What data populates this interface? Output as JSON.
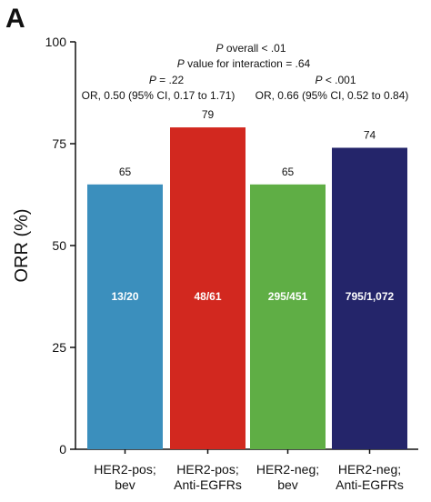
{
  "panel_letter": "A",
  "chart_data": {
    "type": "bar",
    "ylabel": "ORR (%)",
    "ylim": [
      0,
      100
    ],
    "yticks": [
      0,
      25,
      50,
      75,
      100
    ],
    "categories": [
      [
        "HER2-pos;",
        "bev"
      ],
      [
        "HER2-pos;",
        "Anti-EGFRs"
      ],
      [
        "HER2-neg;",
        "bev"
      ],
      [
        "HER2-neg;",
        "Anti-EGFRs"
      ]
    ],
    "values": [
      65,
      79,
      65,
      74
    ],
    "value_labels": [
      "65",
      "79",
      "65",
      "74"
    ],
    "bar_labels": [
      "13/20",
      "48/61",
      "295/451",
      "795/1,072"
    ],
    "colors": [
      "#3b8fbd",
      "#d2281f",
      "#5fae45",
      "#24256a"
    ],
    "annotations": {
      "overall": {
        "italic": "P",
        "text": " overall < .01"
      },
      "interaction": {
        "italic": "P",
        "text": " value for interaction = .64"
      },
      "pos_p": {
        "italic": "P",
        "text": " = .22"
      },
      "pos_or": "OR, 0.50 (95% CI, 0.17 to 1.71)",
      "neg_p": {
        "italic": "P",
        "text": " < .001"
      },
      "neg_or": "OR, 0.66 (95% CI, 0.52 to 0.84)"
    }
  }
}
